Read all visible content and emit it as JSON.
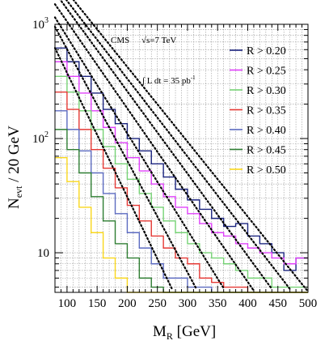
{
  "chart_data": {
    "type": "line",
    "title": "",
    "xlabel": "M",
    "xlabel_sub": "R",
    "xlabel_unit": " [GeV]",
    "ylabel": "N",
    "ylabel_sub": "evt",
    "ylabel_unit": " / 20 GeV",
    "experiment_label": "CMS",
    "energy_label": "√s=7 TeV",
    "lumi_label": "∫ L dt = 35 pb",
    "lumi_sup": "-1",
    "x_scale": "linear",
    "y_scale": "log",
    "xlim": [
      80,
      500
    ],
    "ylim": [
      4.5,
      1000
    ],
    "x_ticks": [
      100,
      150,
      200,
      250,
      300,
      350,
      400,
      450,
      500
    ],
    "y_ticks": [
      {
        "value": 10,
        "base": "10",
        "exp": ""
      },
      {
        "value": 100,
        "base": "10",
        "exp": "2"
      },
      {
        "value": 1000,
        "base": "10",
        "exp": "3"
      }
    ],
    "grid": true,
    "legend_position": "top-right",
    "bin_edges": [
      80,
      100,
      120,
      140,
      160,
      180,
      200,
      220,
      240,
      260,
      280,
      300,
      320,
      340,
      360,
      380,
      400,
      420,
      440,
      460,
      480,
      500
    ],
    "series": [
      {
        "name": "R > 0.20",
        "color": "#1a237e",
        "values": [
          620,
          470,
          350,
          250,
          180,
          135,
          100,
          78,
          60,
          46,
          36,
          29,
          24,
          20,
          17,
          18,
          14,
          12,
          10,
          7,
          9
        ],
        "fit": {
          "a": 2600,
          "b": 0.0151
        }
      },
      {
        "name": "R > 0.25",
        "color": "#e040fb",
        "values": [
          470,
          350,
          250,
          175,
          125,
          92,
          68,
          52,
          40,
          31,
          25,
          22,
          18,
          15,
          14,
          12,
          11,
          10,
          9,
          8,
          9
        ],
        "fit": {
          "a": 2200,
          "b": 0.0157
        }
      },
      {
        "name": "R > 0.30",
        "color": "#76d275",
        "values": [
          350,
          255,
          175,
          120,
          85,
          60,
          44,
          33,
          25,
          19,
          15,
          12,
          10,
          9,
          8,
          7,
          6,
          6,
          5,
          5,
          5
        ],
        "fit": {
          "a": 1900,
          "b": 0.0166
        }
      },
      {
        "name": "R > 0.35",
        "color": "#e53935",
        "values": [
          255,
          180,
          120,
          80,
          55,
          37,
          26,
          19,
          14,
          11,
          9,
          8,
          6,
          5.5,
          5,
          5,
          4,
          4,
          4,
          4,
          4
        ],
        "fit": {
          "a": 1500,
          "b": 0.0175
        }
      },
      {
        "name": "R > 0.40",
        "color": "#5c6bc0",
        "values": [
          175,
          120,
          78,
          50,
          33,
          22,
          15,
          11,
          8,
          6,
          6,
          5,
          5,
          4,
          4,
          4,
          4,
          4,
          4,
          4,
          4
        ],
        "fit": {
          "a": 1150,
          "b": 0.0195
        }
      },
      {
        "name": "R > 0.45",
        "color": "#2e7d32",
        "values": [
          120,
          80,
          50,
          31,
          19,
          12,
          9,
          6,
          5,
          4,
          4,
          4,
          4,
          4,
          4,
          4,
          4,
          4,
          4,
          4,
          4
        ],
        "fit": {
          "a": 950,
          "b": 0.0225
        }
      },
      {
        "name": "R > 0.50",
        "color": "#f9d71c",
        "values": [
          68,
          42,
          25,
          15,
          9,
          6,
          4,
          4,
          4,
          4,
          4,
          4,
          4,
          4,
          4,
          4,
          4,
          4,
          4,
          4,
          4
        ],
        "fit": {
          "a": 620,
          "b": 0.025
        }
      }
    ]
  }
}
